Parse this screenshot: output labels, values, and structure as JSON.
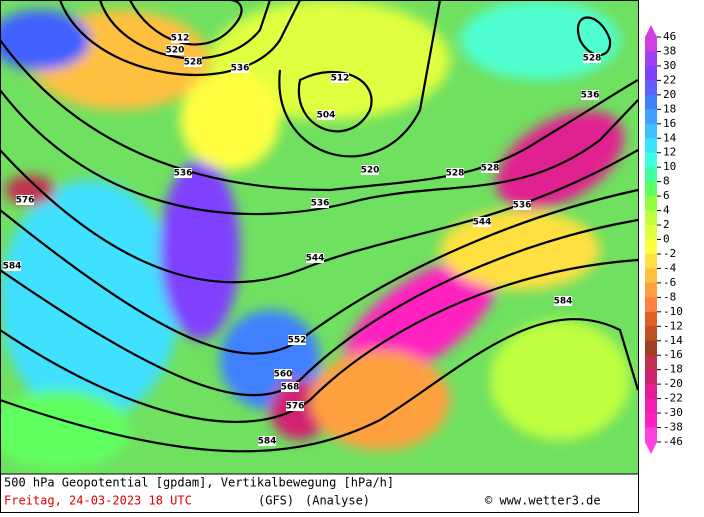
{
  "map": {
    "contour_labels": [
      "512",
      "520",
      "528",
      "536",
      "512",
      "504",
      "520",
      "528",
      "528",
      "536",
      "544",
      "536",
      "536",
      "544",
      "576",
      "584",
      "552",
      "560",
      "568",
      "576",
      "584",
      "584",
      "528",
      "536"
    ],
    "colorbar": {
      "levels": [
        46,
        38,
        30,
        22,
        20,
        18,
        16,
        14,
        12,
        10,
        8,
        6,
        4,
        2,
        0,
        -2,
        -4,
        -6,
        -8,
        -10,
        -12,
        -14,
        -16,
        -18,
        -20,
        -22,
        -30,
        -38,
        -46
      ],
      "colors": [
        "#d040e0",
        "#a040f0",
        "#8040ff",
        "#6060ff",
        "#4080ff",
        "#40a0ff",
        "#40c0ff",
        "#40e0ff",
        "#40ffe0",
        "#40ffa0",
        "#60ff60",
        "#90ff40",
        "#c0ff40",
        "#e0ff40",
        "#ffff40",
        "#ffe040",
        "#ffc040",
        "#ffa040",
        "#ff8040",
        "#e06020",
        "#c05020",
        "#a04020",
        "#c03050",
        "#d02070",
        "#e02090",
        "#f020b0",
        "#ff20c0",
        "#ff40e0"
      ]
    }
  },
  "footer": {
    "title": "500 hPa Geopotential [gpdam], Vertikalbewegung [hPa/h]",
    "date": "Freitag, 24-03-2023  18 UTC",
    "model": "(GFS)",
    "run": "(Analyse)",
    "credit": "© www.wetter3.de"
  }
}
